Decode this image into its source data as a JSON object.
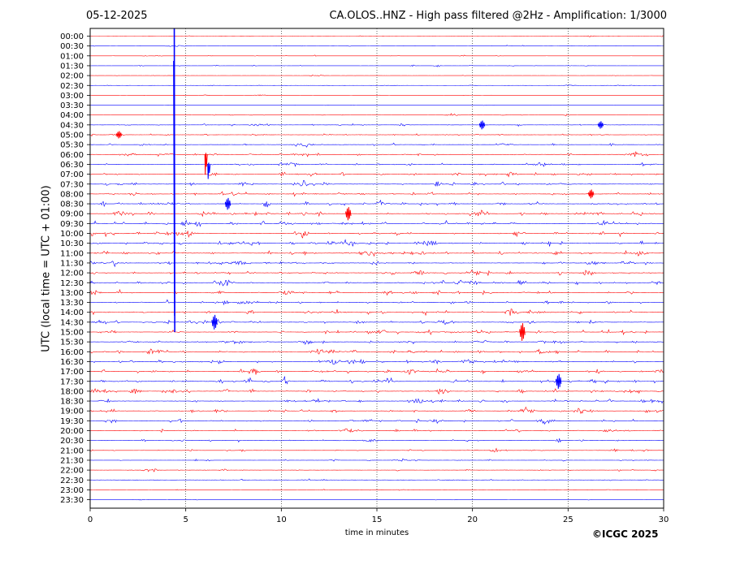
{
  "header": {
    "date": "05-12-2025",
    "title": "CA.OLOS..HNZ - High pass filtered @2Hz - Amplification: 1/3000"
  },
  "footer": {
    "copyright": "©ICGC 2025"
  },
  "chart_data": {
    "type": "line",
    "title": "CA.OLOS..HNZ - High pass filtered @2Hz - Amplification: 1/3000",
    "xlabel": "time in minutes",
    "ylabel": "UTC (local time = UTC + 01:00)",
    "xlim": [
      0,
      30
    ],
    "xticks": [
      0,
      5,
      10,
      15,
      20,
      25,
      30
    ],
    "grid": "vertical dotted lines at 5-minute intervals",
    "trace_colors": [
      "#ff0000",
      "#0000ff"
    ],
    "color_order": "alternating per row starting with red at 00:00 (red, blue, red, blue...)",
    "rows": [
      "00:00",
      "00:30",
      "01:00",
      "01:30",
      "02:00",
      "02:30",
      "03:00",
      "03:30",
      "04:00",
      "04:30",
      "05:00",
      "05:30",
      "06:00",
      "06:30",
      "07:00",
      "07:30",
      "08:00",
      "08:30",
      "09:00",
      "09:30",
      "10:00",
      "10:30",
      "11:00",
      "11:30",
      "12:00",
      "12:30",
      "13:00",
      "13:30",
      "14:00",
      "14:30",
      "15:00",
      "15:30",
      "16:00",
      "16:30",
      "17:00",
      "17:30",
      "18:00",
      "18:30",
      "19:00",
      "19:30",
      "20:00",
      "20:30",
      "21:00",
      "21:30",
      "22:00",
      "22:30",
      "23:00",
      "23:30"
    ],
    "noise_level": [
      0.2,
      0.25,
      0.25,
      0.3,
      0.2,
      0.2,
      0.15,
      0.15,
      0.3,
      0.45,
      0.5,
      0.55,
      0.75,
      0.7,
      0.75,
      0.8,
      0.8,
      0.85,
      0.9,
      0.9,
      0.95,
      0.95,
      0.95,
      0.9,
      0.9,
      0.9,
      0.85,
      0.85,
      0.85,
      0.85,
      0.85,
      0.85,
      0.9,
      0.9,
      0.9,
      0.95,
      0.95,
      0.85,
      0.8,
      0.75,
      0.7,
      0.6,
      0.55,
      0.45,
      0.45,
      0.35,
      0.25,
      0.2
    ],
    "events": [
      {
        "row": 0,
        "x": 4.4,
        "amp": 80,
        "dir": "down",
        "desc": "large spike spanning 00:00 to 15:00"
      },
      {
        "row": 12,
        "x": 6.0,
        "amp": 25,
        "dir": "down"
      },
      {
        "row": 13,
        "x": 6.15,
        "amp": 18,
        "dir": "down"
      },
      {
        "row": 17,
        "x": 7.2,
        "amp": 8,
        "dir": "both"
      },
      {
        "row": 16,
        "x": 26.2,
        "amp": 6,
        "dir": "both"
      },
      {
        "row": 35,
        "x": 24.5,
        "amp": 10,
        "dir": "both"
      },
      {
        "row": 29,
        "x": 6.5,
        "amp": 10,
        "dir": "both"
      },
      {
        "row": 30,
        "x": 22.6,
        "amp": 12,
        "dir": "both"
      },
      {
        "row": 9,
        "x": 26.7,
        "amp": 5,
        "dir": "both"
      },
      {
        "row": 10,
        "x": 1.5,
        "amp": 5,
        "dir": "both"
      },
      {
        "row": 18,
        "x": 13.5,
        "amp": 9,
        "dir": "both"
      },
      {
        "row": 9,
        "x": 20.5,
        "amp": 6,
        "dir": "both"
      }
    ]
  }
}
